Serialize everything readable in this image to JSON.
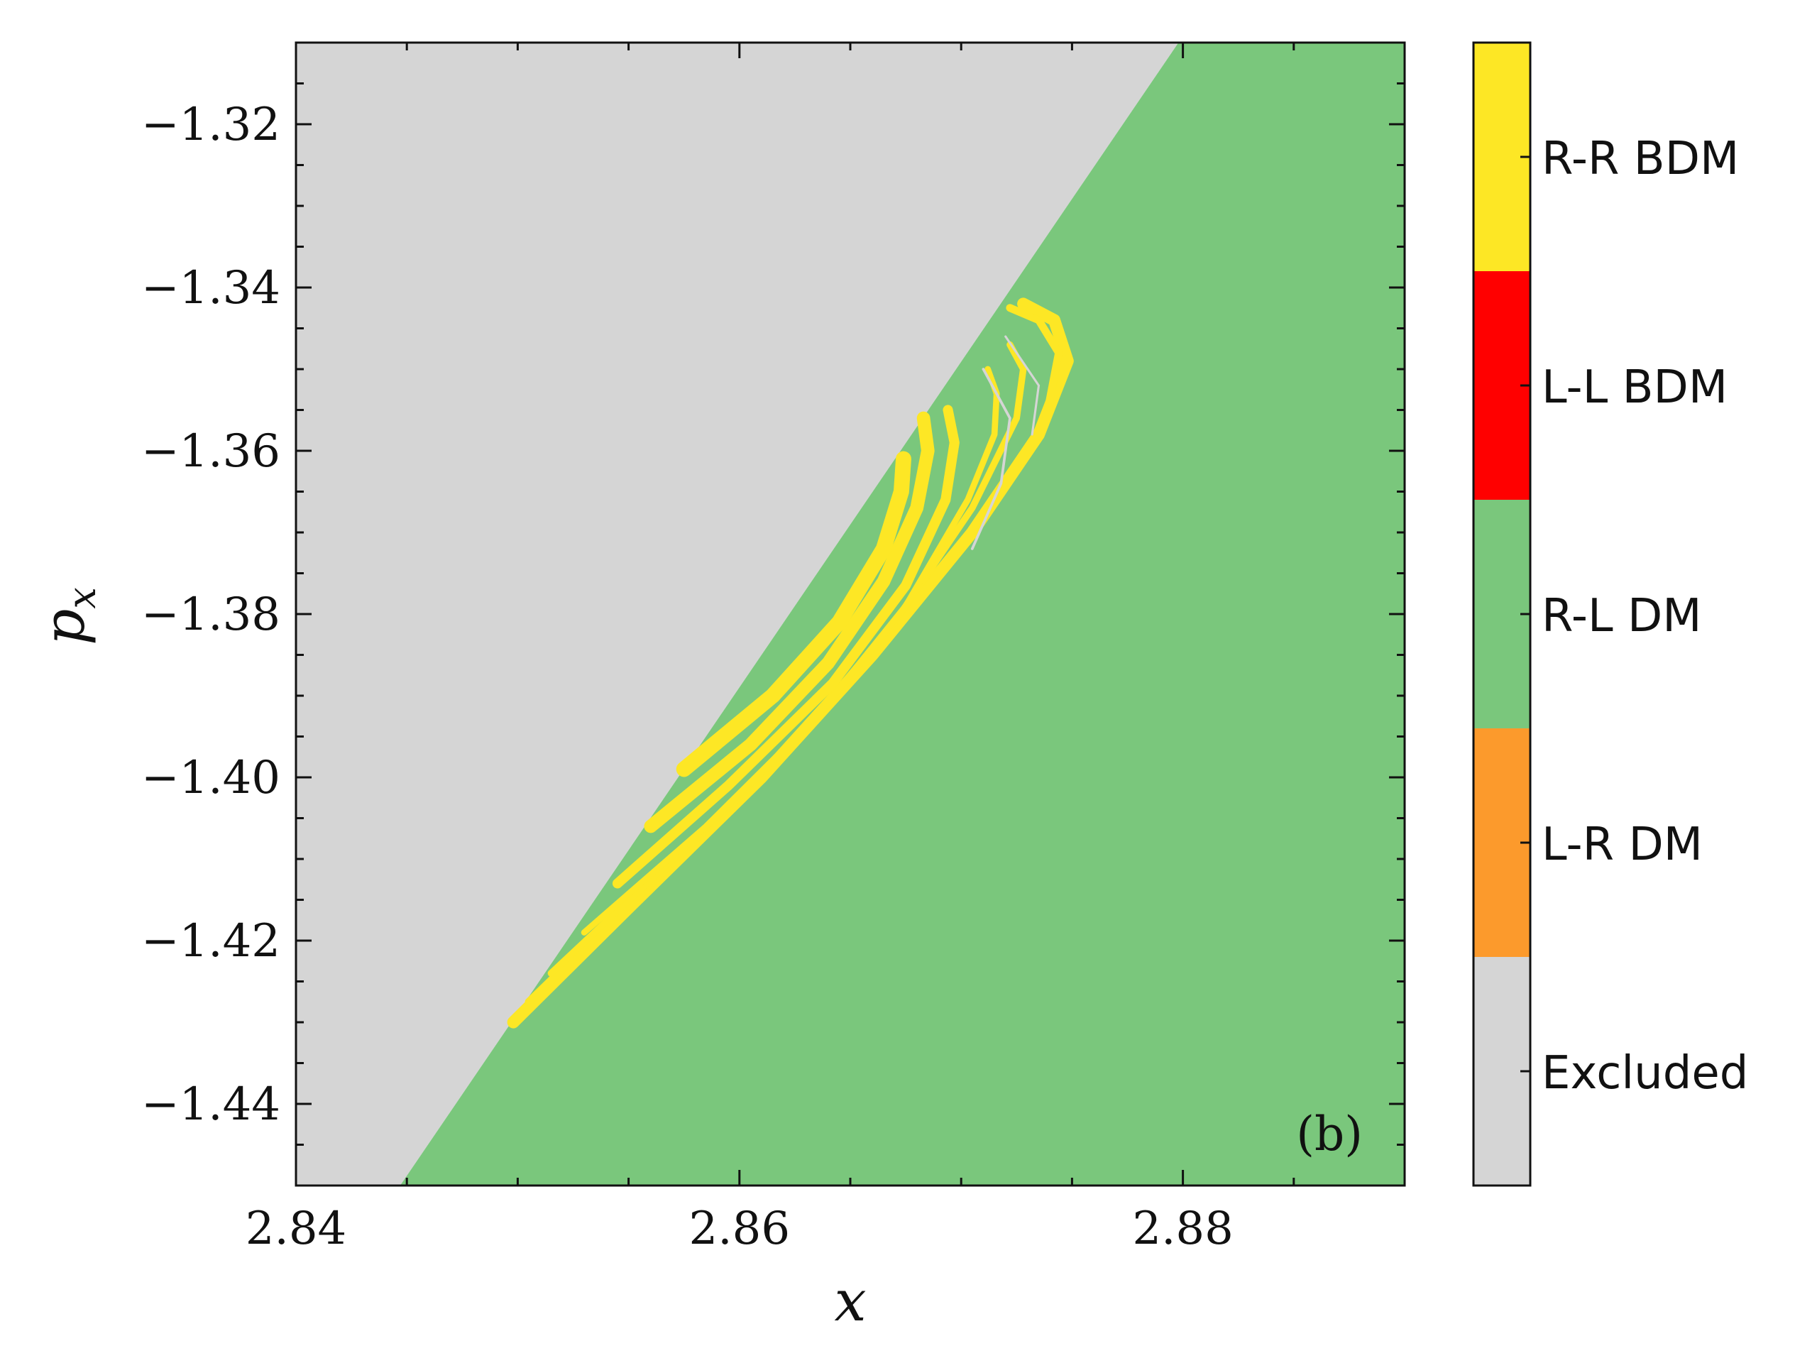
{
  "chart_data": {
    "type": "heatmap",
    "panel_label": "(b)",
    "xlabel": "x",
    "ylabel": "p",
    "ylabel_sub": "x",
    "xlim": [
      2.84,
      2.89
    ],
    "ylim": [
      -1.45,
      -1.31
    ],
    "xticks": [
      2.84,
      2.86,
      2.88
    ],
    "xtick_labels": [
      "2.84",
      "2.86",
      "2.88"
    ],
    "yticks": [
      -1.32,
      -1.34,
      -1.36,
      -1.38,
      -1.4,
      -1.42,
      -1.44
    ],
    "ytick_labels": [
      "−1.32",
      "−1.34",
      "−1.36",
      "−1.38",
      "−1.40",
      "−1.42",
      "−1.44"
    ],
    "x_minor_step": 0.005,
    "y_minor_step": 0.005,
    "regions": [
      {
        "category": "Excluded",
        "description_points": [
          [
            2.84,
            -1.45
          ],
          [
            2.8447,
            -1.45
          ],
          [
            2.8798,
            -1.31
          ],
          [
            2.84,
            -1.31
          ]
        ]
      },
      {
        "category": "R-L DM",
        "description_points": [
          [
            2.8447,
            -1.45
          ],
          [
            2.89,
            -1.45
          ],
          [
            2.89,
            -1.31
          ],
          [
            2.8798,
            -1.31
          ]
        ]
      }
    ],
    "boundary_line": [
      [
        2.8447,
        -1.45
      ],
      [
        2.8798,
        -1.31
      ]
    ],
    "yellow_filaments": [
      {
        "category": "R-R BDM",
        "points": [
          [
            2.8498,
            -1.43
          ],
          [
            2.855,
            -1.416
          ],
          [
            2.861,
            -1.4
          ],
          [
            2.866,
            -1.385
          ],
          [
            2.8705,
            -1.37
          ],
          [
            2.8735,
            -1.358
          ],
          [
            2.8748,
            -1.349
          ],
          [
            2.8742,
            -1.344
          ],
          [
            2.8728,
            -1.342
          ]
        ],
        "width": 0.00055
      },
      {
        "category": "R-R BDM",
        "points": [
          [
            2.8505,
            -1.4275
          ],
          [
            2.856,
            -1.413
          ],
          [
            2.8618,
            -1.3975
          ],
          [
            2.8668,
            -1.3825
          ],
          [
            2.871,
            -1.368
          ],
          [
            2.8738,
            -1.3565
          ],
          [
            2.8744,
            -1.348
          ],
          [
            2.8735,
            -1.344
          ],
          [
            2.8722,
            -1.3425
          ]
        ],
        "width": 0.00035
      },
      {
        "category": "R-R BDM",
        "points": [
          [
            2.8515,
            -1.424
          ],
          [
            2.857,
            -1.41
          ],
          [
            2.8625,
            -1.3955
          ],
          [
            2.867,
            -1.381
          ],
          [
            2.8705,
            -1.367
          ],
          [
            2.8725,
            -1.356
          ],
          [
            2.8728,
            -1.35
          ],
          [
            2.8722,
            -1.347
          ]
        ],
        "width": 0.0003
      },
      {
        "category": "R-R BDM",
        "points": [
          [
            2.853,
            -1.419
          ],
          [
            2.8585,
            -1.406
          ],
          [
            2.8635,
            -1.3925
          ],
          [
            2.8675,
            -1.379
          ],
          [
            2.8703,
            -1.366
          ],
          [
            2.8715,
            -1.358
          ],
          [
            2.8716,
            -1.353
          ],
          [
            2.8712,
            -1.35
          ]
        ],
        "width": 0.00028
      },
      {
        "category": "R-R BDM",
        "points": [
          [
            2.8545,
            -1.413
          ],
          [
            2.8595,
            -1.401
          ],
          [
            2.8642,
            -1.3885
          ],
          [
            2.8675,
            -1.3765
          ],
          [
            2.8693,
            -1.366
          ],
          [
            2.8697,
            -1.359
          ],
          [
            2.8694,
            -1.355
          ]
        ],
        "width": 0.00045
      },
      {
        "category": "R-R BDM",
        "points": [
          [
            2.856,
            -1.406
          ],
          [
            2.8605,
            -1.396
          ],
          [
            2.864,
            -1.386
          ],
          [
            2.8665,
            -1.376
          ],
          [
            2.868,
            -1.367
          ],
          [
            2.8685,
            -1.36
          ],
          [
            2.8683,
            -1.356
          ]
        ],
        "width": 0.0006
      },
      {
        "category": "R-R BDM",
        "points": [
          [
            2.8575,
            -1.399
          ],
          [
            2.8615,
            -1.39
          ],
          [
            2.8645,
            -1.381
          ],
          [
            2.8665,
            -1.372
          ],
          [
            2.8673,
            -1.365
          ],
          [
            2.8674,
            -1.361
          ]
        ],
        "width": 0.0007
      }
    ],
    "grey_filaments": [
      {
        "category": "Excluded",
        "points": [
          [
            2.871,
            -1.35
          ],
          [
            2.8722,
            -1.356
          ],
          [
            2.8718,
            -1.364
          ],
          [
            2.8705,
            -1.372
          ]
        ],
        "width": 0.00012
      },
      {
        "category": "Excluded",
        "points": [
          [
            2.872,
            -1.346
          ],
          [
            2.8735,
            -1.352
          ],
          [
            2.8732,
            -1.358
          ]
        ],
        "width": 0.0001
      }
    ]
  },
  "colorbar": {
    "entries": [
      {
        "label": "R-R BDM",
        "color": "#fde725"
      },
      {
        "label": "L-L BDM",
        "color": "#ff0000"
      },
      {
        "label": "R-L DM",
        "color": "#7ac77c"
      },
      {
        "label": "L-R DM",
        "color": "#fc9a2c"
      },
      {
        "label": "Excluded",
        "color": "#d5d5d5"
      }
    ]
  },
  "colors": {
    "excluded": "#d5d5d5",
    "rl_dm": "#7ac77c",
    "rr_bdm": "#fde725",
    "axis": "#111111"
  }
}
